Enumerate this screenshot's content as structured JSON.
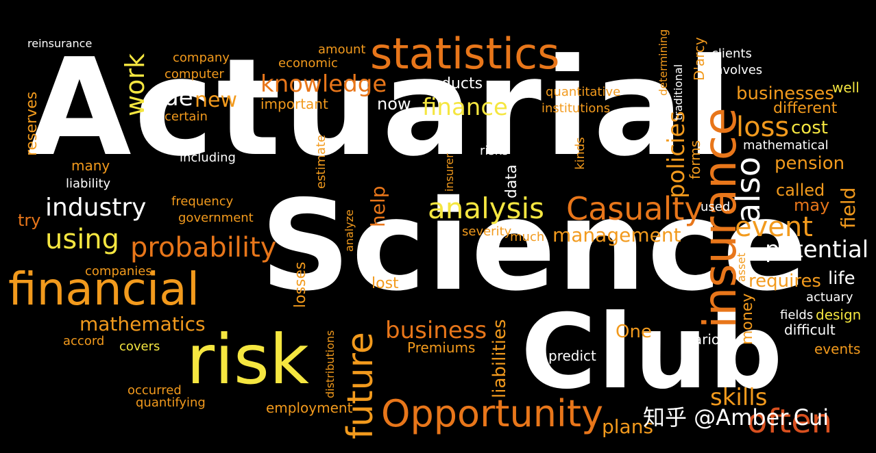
{
  "title": {
    "line1": "Actuarial",
    "line2": "Science",
    "line3": "Club"
  },
  "watermark": "知乎 @Amber.Cui",
  "words": {
    "statistics": "statistics",
    "financial": "financial",
    "risk": "risk",
    "insurance": "insurance",
    "opportunity": "Opportunity",
    "probability": "probability",
    "analysis": "analysis",
    "industry": "industry",
    "using": "using",
    "casualty": "Casualty",
    "knowledge": "knowledge",
    "future": "future",
    "finance": "finance",
    "business": "business",
    "also": "also",
    "often": "often",
    "event": "event",
    "potential": "potential",
    "loss": "loss",
    "cost": "cost",
    "pension": "pension",
    "management": "management",
    "mathematics": "mathematics",
    "policies": "policies",
    "work": "work",
    "side": "side",
    "new": "new",
    "skills": "skills",
    "reinsurance": "reinsurance",
    "company": "company",
    "computer": "computer",
    "products": "products",
    "now": "now",
    "important": "important",
    "businesses": "businesses",
    "different": "different",
    "mathematical": "mathematical",
    "called": "called",
    "may": "may",
    "field": "field",
    "requires": "requires",
    "life": "life",
    "actuary": "actuary",
    "design": "design",
    "fields": "fields",
    "difficult": "difficult",
    "events": "events",
    "various": "various",
    "predict": "predict",
    "liabilities": "liabilities",
    "premiums": "Premiums",
    "employment": "employment",
    "plans": "plans",
    "occurred": "occurred",
    "quantifying": "quantifying",
    "covers": "covers",
    "accord": "accord",
    "companies": "companies",
    "reserves": "reserves",
    "many": "many",
    "liability": "liability",
    "try": "try",
    "frequency": "frequency",
    "government": "government",
    "including": "including",
    "certain": "certain",
    "help": "help",
    "lost": "lost",
    "losses": "losses",
    "severity": "severity",
    "much": "much",
    "data": "data",
    "risks": "risks",
    "kinds": "kinds",
    "institutions": "institutions",
    "quantitative": "quantitative",
    "clients": "clients",
    "involves": "involves",
    "amount": "amount",
    "economic": "economic",
    "money": "money",
    "one": "One",
    "well": "well",
    "used": "used",
    "forms": "forms",
    "determining": "determining",
    "traditional": "traditional",
    "darcy": "D'arcy",
    "estimate": "estimate",
    "insurer": "insurer",
    "distributions": "distributions",
    "analyze": "analyze",
    "asset": "asset"
  }
}
